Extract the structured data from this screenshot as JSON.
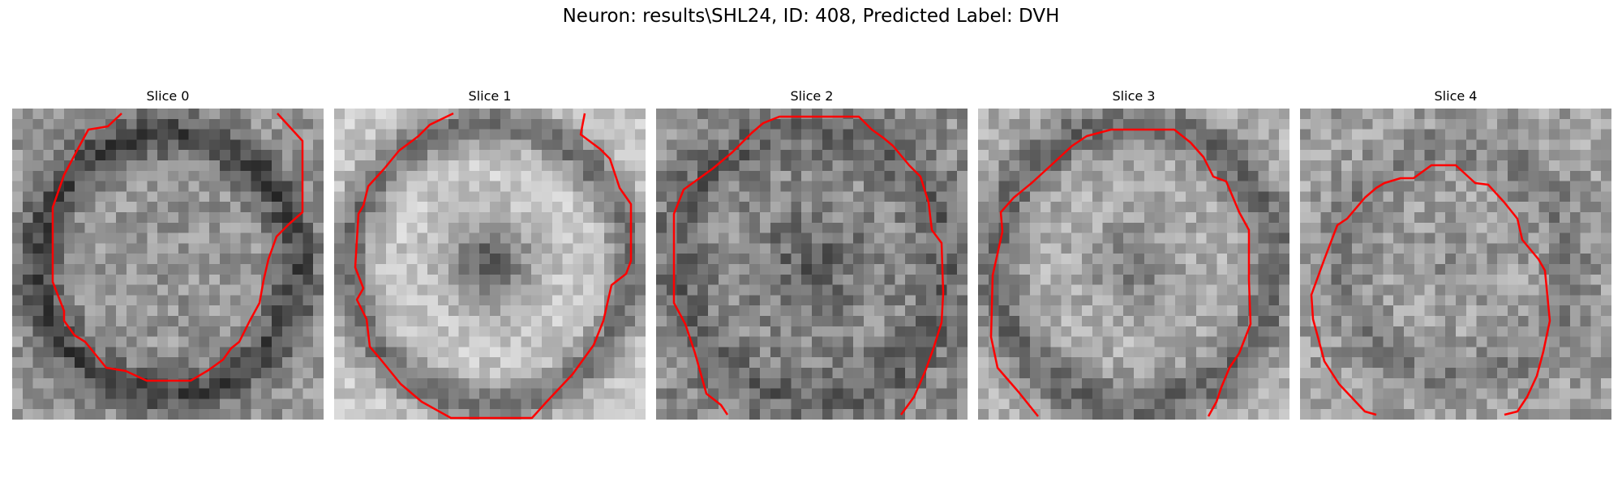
{
  "figure": {
    "title": "Neuron: results\\SHL24, ID: 408, Predicted Label: DVH"
  },
  "panels": [
    {
      "title": "Slice 0",
      "pattern": "dark-ring",
      "outline": "open-top"
    },
    {
      "title": "Slice 1",
      "pattern": "bright-ring-dark-center",
      "outline": "open-top"
    },
    {
      "title": "Slice 2",
      "pattern": "mottled",
      "outline": "open-bottom"
    },
    {
      "title": "Slice 3",
      "pattern": "soft-ring",
      "outline": "open-bottom"
    },
    {
      "title": "Slice 4",
      "pattern": "faint",
      "outline": "open-bottom"
    }
  ],
  "colors": {
    "contour": "#ff0000",
    "background": "#ffffff"
  },
  "image": {
    "colormap": "grayscale",
    "grid": "30x30 pixels"
  }
}
